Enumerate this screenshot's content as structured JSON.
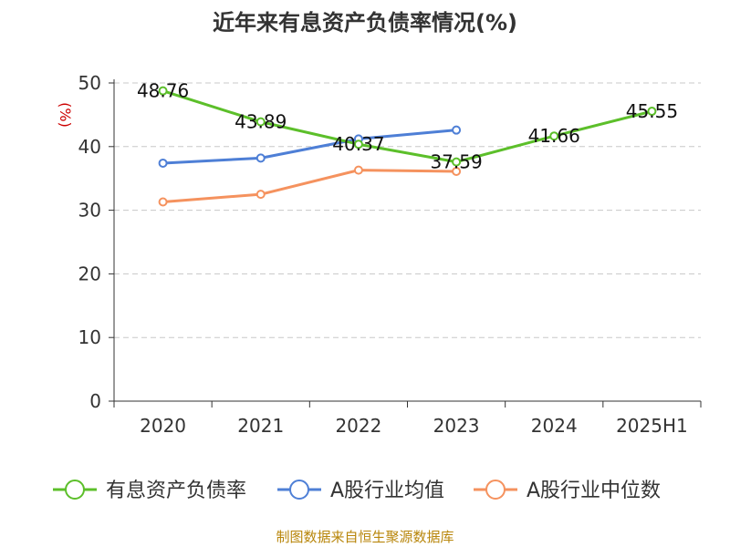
{
  "chart_data": {
    "type": "line",
    "title": "近年来有息资产负债率情况(%)",
    "ylabel": "(%)",
    "xlabel": "",
    "categories": [
      "2020",
      "2021",
      "2022",
      "2023",
      "2024",
      "2025H1"
    ],
    "ylim": [
      0,
      50
    ],
    "yticks": [
      0,
      10,
      20,
      30,
      40,
      50
    ],
    "grid": "horizontal-dashed",
    "legend_position": "bottom",
    "series": [
      {
        "name": "有息资产负债率",
        "color": "#5cbf2a",
        "values": [
          48.76,
          43.89,
          40.37,
          37.59,
          41.66,
          45.55
        ],
        "labels": [
          "48.76",
          "43.89",
          "40.37",
          "37.59",
          "41.66",
          "45.55"
        ]
      },
      {
        "name": "A股行业均值",
        "color": "#4e7fd6",
        "values": [
          37.4,
          38.2,
          41.2,
          42.6,
          null,
          null
        ]
      },
      {
        "name": "A股行业中位数",
        "color": "#f5925e",
        "values": [
          31.3,
          32.5,
          36.3,
          36.1,
          null,
          null
        ]
      }
    ]
  },
  "source": "制图数据来自恒生聚源数据库"
}
